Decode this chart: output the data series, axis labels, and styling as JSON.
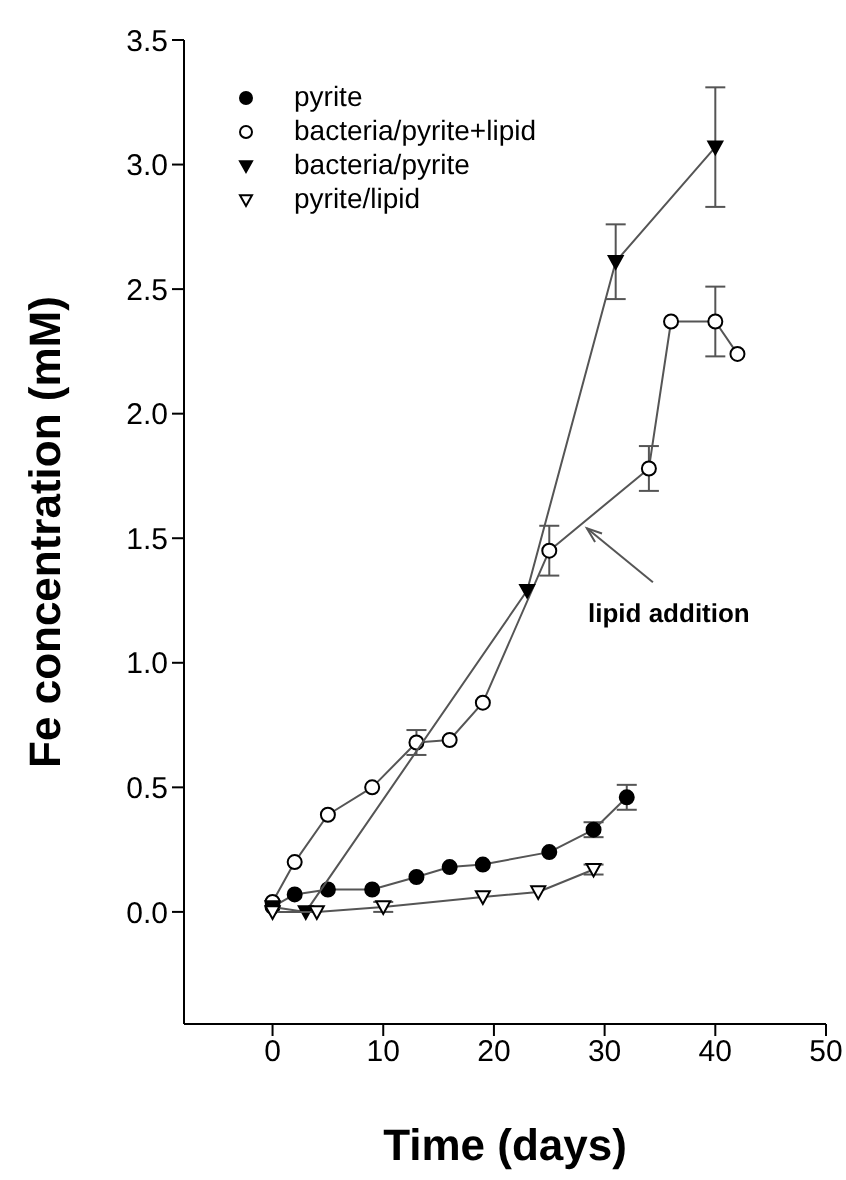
{
  "chart_data": {
    "type": "line",
    "xlabel": "Time (days)",
    "ylabel": "Fe concentration (mM)",
    "xlim": [
      -8,
      50
    ],
    "xticks": [
      0,
      10,
      20,
      30,
      40,
      50
    ],
    "ylim": [
      -0.45,
      3.5
    ],
    "yticks": [
      {
        "value": 0,
        "label": "0.0"
      },
      {
        "value": 0.5,
        "label": "0.5"
      },
      {
        "value": 1,
        "label": "1.0"
      },
      {
        "value": 1.5,
        "label": "1.5"
      },
      {
        "value": 2,
        "label": "2.0"
      },
      {
        "value": 2.5,
        "label": "2.5"
      },
      {
        "value": 3,
        "label": "3.0"
      },
      {
        "value": 3.5,
        "label": "3.5"
      }
    ],
    "grid": false,
    "legend": "top left",
    "marker": "circle",
    "line_style": "solid",
    "series": [
      {
        "name": "pyrite",
        "color": "#000000",
        "x": [
          0,
          2,
          5,
          9,
          13,
          16,
          19,
          25,
          29,
          32
        ],
        "values": [
          0.02,
          0.07,
          0.09,
          0.09,
          0.14,
          0.18,
          0.19,
          0.24,
          0.33,
          0.46
        ],
        "errors": [
          null,
          null,
          null,
          null,
          null,
          null,
          null,
          null,
          0.03,
          0.05
        ]
      },
      {
        "name": "bacteria/pyrite+lipid",
        "color": "#ffffff",
        "x": [
          0,
          2,
          5,
          9,
          13,
          16,
          19,
          25,
          34,
          36,
          40,
          42
        ],
        "values": [
          0.04,
          0.2,
          0.39,
          0.5,
          0.68,
          0.69,
          0.84,
          1.45,
          1.78,
          2.37,
          2.37,
          2.24
        ],
        "errors": [
          null,
          null,
          null,
          null,
          0.05,
          null,
          null,
          0.1,
          0.09,
          null,
          0.14,
          null
        ]
      },
      {
        "name": "bacteria/pyrite",
        "color": "#000000",
        "marker": "triangle",
        "x": [
          0,
          3,
          23,
          31,
          40
        ],
        "values": [
          0.02,
          0.0,
          1.29,
          2.61,
          3.07
        ],
        "errors": [
          null,
          null,
          null,
          0.15,
          0.24
        ]
      },
      {
        "name": "pyrite/lipid",
        "color": "#ffffff",
        "marker": "triangle",
        "x": [
          0,
          4,
          10,
          19,
          24,
          29
        ],
        "values": [
          0.0,
          0.0,
          0.02,
          0.06,
          0.08,
          0.17
        ],
        "errors": [
          null,
          null,
          0.02,
          null,
          null,
          0.02
        ]
      }
    ],
    "annotations": [
      {
        "text": "lipid addition",
        "x": 28.4,
        "y": 1.54
      }
    ]
  }
}
